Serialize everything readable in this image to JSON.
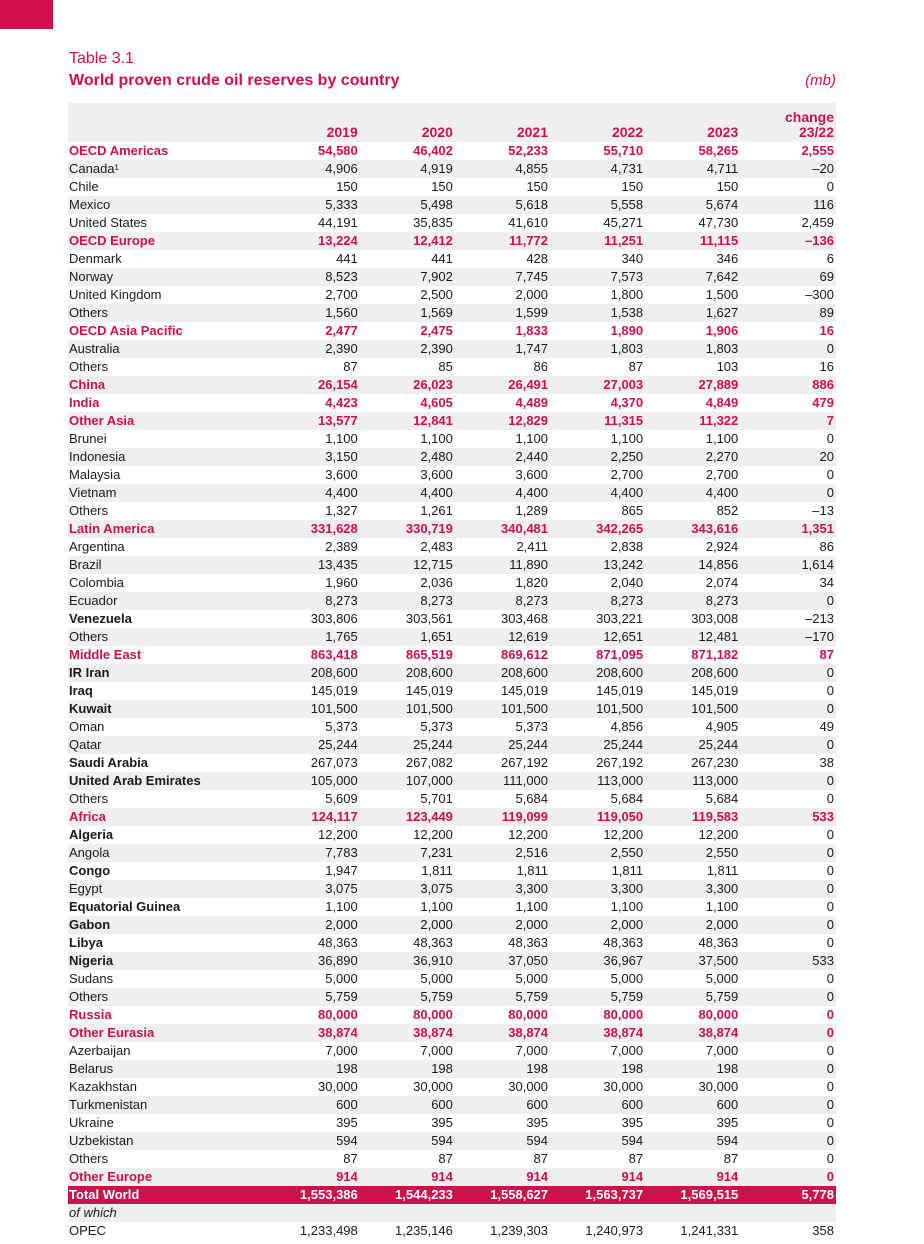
{
  "title": "Table 3.1",
  "subtitle": "World proven crude oil reserves by country",
  "unit": "(mb)",
  "headers": [
    "2019",
    "2020",
    "2021",
    "2022",
    "2023",
    "change 23/22"
  ],
  "rows": [
    [
      "OECD Americas",
      "r",
      "54,580",
      "46,402",
      "52,233",
      "55,710",
      "58,265",
      "2,555"
    ],
    [
      "Canada¹",
      "n",
      "4,906",
      "4,919",
      "4,855",
      "4,731",
      "4,711",
      "–20"
    ],
    [
      "Chile",
      "n",
      "150",
      "150",
      "150",
      "150",
      "150",
      "0"
    ],
    [
      "Mexico",
      "n",
      "5,333",
      "5,498",
      "5,618",
      "5,558",
      "5,674",
      "116"
    ],
    [
      "United States",
      "n",
      "44,191",
      "35,835",
      "41,610",
      "45,271",
      "47,730",
      "2,459"
    ],
    [
      "OECD Europe",
      "r",
      "13,224",
      "12,412",
      "11,772",
      "11,251",
      "11,115",
      "–136"
    ],
    [
      "Denmark",
      "n",
      "441",
      "441",
      "428",
      "340",
      "346",
      "6"
    ],
    [
      "Norway",
      "n",
      "8,523",
      "7,902",
      "7,745",
      "7,573",
      "7,642",
      "69"
    ],
    [
      "United Kingdom",
      "n",
      "2,700",
      "2,500",
      "2,000",
      "1,800",
      "1,500",
      "–300"
    ],
    [
      "Others",
      "n",
      "1,560",
      "1,569",
      "1,599",
      "1,538",
      "1,627",
      "89"
    ],
    [
      "OECD Asia Pacific",
      "r",
      "2,477",
      "2,475",
      "1,833",
      "1,890",
      "1,906",
      "16"
    ],
    [
      "Australia",
      "n",
      "2,390",
      "2,390",
      "1,747",
      "1,803",
      "1,803",
      "0"
    ],
    [
      "Others",
      "n",
      "87",
      "85",
      "86",
      "87",
      "103",
      "16"
    ],
    [
      "China",
      "r",
      "26,154",
      "26,023",
      "26,491",
      "27,003",
      "27,889",
      "886"
    ],
    [
      "India",
      "r",
      "4,423",
      "4,605",
      "4,489",
      "4,370",
      "4,849",
      "479"
    ],
    [
      "Other Asia",
      "r",
      "13,577",
      "12,841",
      "12,829",
      "11,315",
      "11,322",
      "7"
    ],
    [
      "Brunei",
      "n",
      "1,100",
      "1,100",
      "1,100",
      "1,100",
      "1,100",
      "0"
    ],
    [
      "Indonesia",
      "n",
      "3,150",
      "2,480",
      "2,440",
      "2,250",
      "2,270",
      "20"
    ],
    [
      "Malaysia",
      "n",
      "3,600",
      "3,600",
      "3,600",
      "2,700",
      "2,700",
      "0"
    ],
    [
      "Vietnam",
      "n",
      "4,400",
      "4,400",
      "4,400",
      "4,400",
      "4,400",
      "0"
    ],
    [
      "Others",
      "n",
      "1,327",
      "1,261",
      "1,289",
      "865",
      "852",
      "–13"
    ],
    [
      "Latin America",
      "r",
      "331,628",
      "330,719",
      "340,481",
      "342,265",
      "343,616",
      "1,351"
    ],
    [
      "Argentina",
      "n",
      "2,389",
      "2,483",
      "2,411",
      "2,838",
      "2,924",
      "86"
    ],
    [
      "Brazil",
      "n",
      "13,435",
      "12,715",
      "11,890",
      "13,242",
      "14,856",
      "1,614"
    ],
    [
      "Colombia",
      "n",
      "1,960",
      "2,036",
      "1,820",
      "2,040",
      "2,074",
      "34"
    ],
    [
      "Ecuador",
      "n",
      "8,273",
      "8,273",
      "8,273",
      "8,273",
      "8,273",
      "0"
    ],
    [
      "Venezuela",
      "b",
      "303,806",
      "303,561",
      "303,468",
      "303,221",
      "303,008",
      "–213"
    ],
    [
      "Others",
      "n",
      "1,765",
      "1,651",
      "12,619",
      "12,651",
      "12,481",
      "–170"
    ],
    [
      "Middle East",
      "r",
      "863,418",
      "865,519",
      "869,612",
      "871,095",
      "871,182",
      "87"
    ],
    [
      "IR Iran",
      "b",
      "208,600",
      "208,600",
      "208,600",
      "208,600",
      "208,600",
      "0"
    ],
    [
      "Iraq",
      "b",
      "145,019",
      "145,019",
      "145,019",
      "145,019",
      "145,019",
      "0"
    ],
    [
      "Kuwait",
      "b",
      "101,500",
      "101,500",
      "101,500",
      "101,500",
      "101,500",
      "0"
    ],
    [
      "Oman",
      "n",
      "5,373",
      "5,373",
      "5,373",
      "4,856",
      "4,905",
      "49"
    ],
    [
      "Qatar",
      "n",
      "25,244",
      "25,244",
      "25,244",
      "25,244",
      "25,244",
      "0"
    ],
    [
      "Saudi Arabia",
      "b",
      "267,073",
      "267,082",
      "267,192",
      "267,192",
      "267,230",
      "38"
    ],
    [
      "United Arab Emirates",
      "b",
      "105,000",
      "107,000",
      "111,000",
      "113,000",
      "113,000",
      "0"
    ],
    [
      "Others",
      "n",
      "5,609",
      "5,701",
      "5,684",
      "5,684",
      "5,684",
      "0"
    ],
    [
      "Africa",
      "r",
      "124,117",
      "123,449",
      "119,099",
      "119,050",
      "119,583",
      "533"
    ],
    [
      "Algeria",
      "b",
      "12,200",
      "12,200",
      "12,200",
      "12,200",
      "12,200",
      "0"
    ],
    [
      "Angola",
      "n",
      "7,783",
      "7,231",
      "2,516",
      "2,550",
      "2,550",
      "0"
    ],
    [
      "Congo",
      "b",
      "1,947",
      "1,811",
      "1,811",
      "1,811",
      "1,811",
      "0"
    ],
    [
      "Egypt",
      "n",
      "3,075",
      "3,075",
      "3,300",
      "3,300",
      "3,300",
      "0"
    ],
    [
      "Equatorial Guinea",
      "b",
      "1,100",
      "1,100",
      "1,100",
      "1,100",
      "1,100",
      "0"
    ],
    [
      "Gabon",
      "b",
      "2,000",
      "2,000",
      "2,000",
      "2,000",
      "2,000",
      "0"
    ],
    [
      "Libya",
      "b",
      "48,363",
      "48,363",
      "48,363",
      "48,363",
      "48,363",
      "0"
    ],
    [
      "Nigeria",
      "b",
      "36,890",
      "36,910",
      "37,050",
      "36,967",
      "37,500",
      "533"
    ],
    [
      "Sudans",
      "n",
      "5,000",
      "5,000",
      "5,000",
      "5,000",
      "5,000",
      "0"
    ],
    [
      "Others",
      "n",
      "5,759",
      "5,759",
      "5,759",
      "5,759",
      "5,759",
      "0"
    ],
    [
      "Russia",
      "r",
      "80,000",
      "80,000",
      "80,000",
      "80,000",
      "80,000",
      "0"
    ],
    [
      "Other Eurasia",
      "r",
      "38,874",
      "38,874",
      "38,874",
      "38,874",
      "38,874",
      "0"
    ],
    [
      "Azerbaijan",
      "n",
      "7,000",
      "7,000",
      "7,000",
      "7,000",
      "7,000",
      "0"
    ],
    [
      "Belarus",
      "n",
      "198",
      "198",
      "198",
      "198",
      "198",
      "0"
    ],
    [
      "Kazakhstan",
      "n",
      "30,000",
      "30,000",
      "30,000",
      "30,000",
      "30,000",
      "0"
    ],
    [
      "Turkmenistan",
      "n",
      "600",
      "600",
      "600",
      "600",
      "600",
      "0"
    ],
    [
      "Ukraine",
      "n",
      "395",
      "395",
      "395",
      "395",
      "395",
      "0"
    ],
    [
      "Uzbekistan",
      "n",
      "594",
      "594",
      "594",
      "594",
      "594",
      "0"
    ],
    [
      "Others",
      "n",
      "87",
      "87",
      "87",
      "87",
      "87",
      "0"
    ],
    [
      "Other Europe",
      "r",
      "914",
      "914",
      "914",
      "914",
      "914",
      "0"
    ],
    [
      "Total World",
      "tot",
      "1,553,386",
      "1,544,233",
      "1,558,627",
      "1,563,737",
      "1,569,515",
      "5,778"
    ],
    [
      "of which",
      "ital",
      "",
      "",
      "",
      "",
      "",
      ""
    ],
    [
      "OPEC",
      "n",
      "1,233,498",
      "1,235,146",
      "1,239,303",
      "1,240,973",
      "1,241,331",
      "358"
    ]
  ]
}
